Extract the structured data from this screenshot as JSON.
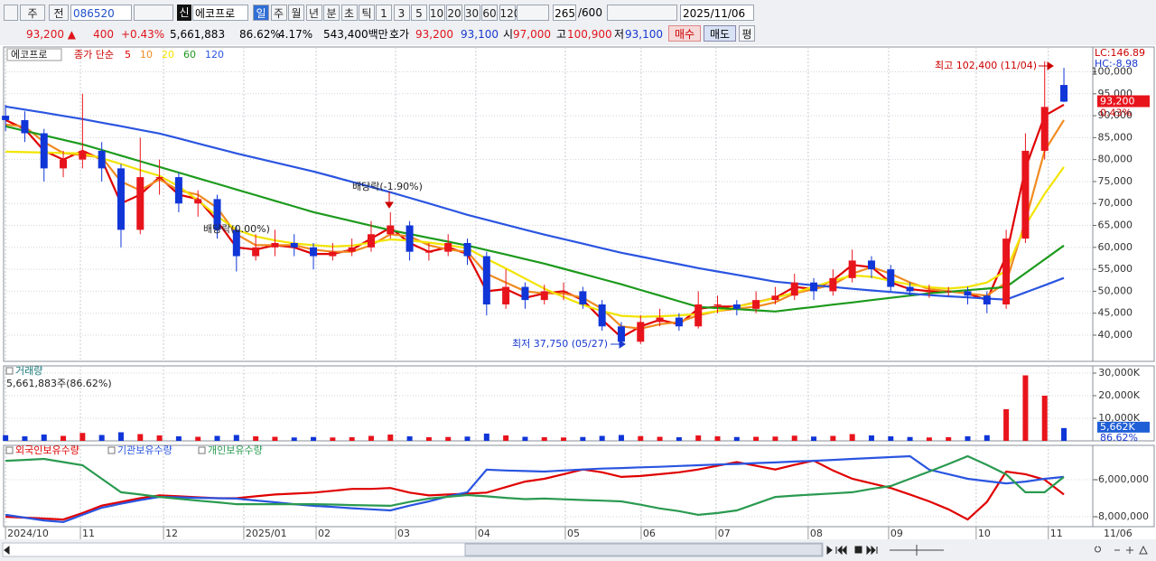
{
  "toolbar": {
    "market": "주",
    "compare": "전",
    "code": "086520",
    "badge": "신",
    "name": "에코프로",
    "periods": [
      "일",
      "주",
      "월",
      "년",
      "분",
      "초",
      "틱"
    ],
    "intervals": [
      "1",
      "3",
      "5",
      "10",
      "20",
      "30",
      "60",
      "120"
    ],
    "count": "265",
    "max": "/600",
    "date": "2025/11/06"
  },
  "quote": {
    "price": "93,200 ▲",
    "change": "400",
    "rate": "+0.43%",
    "volume": "5,661,883",
    "volume_rate": "86.62%",
    "turnover": "4.17%",
    "amount": "543,400백만",
    "bid_label": "호가",
    "ask": "93,200",
    "bid": "93,100",
    "open_label": "시",
    "open": "97,000",
    "high_label": "고",
    "high": "100,900",
    "low_label": "저",
    "low": "93,100",
    "buy": "매수",
    "sell": "매도",
    "avg": "평"
  },
  "chart_data": [
    {
      "type": "candlestick",
      "title": "에코프로",
      "legend_title": "종가 단순",
      "up_color": "#e8141c",
      "down_color": "#1036d8",
      "xlim": [
        -0.1,
        56.5
      ],
      "ylim": [
        34030,
        105660
      ],
      "yticks": [
        {
          "value": 40000,
          "label": "40,000"
        },
        {
          "value": 45000,
          "label": "45,000"
        },
        {
          "value": 50000,
          "label": "50,000"
        },
        {
          "value": 55000,
          "label": "55,000"
        },
        {
          "value": 60000,
          "label": "60,000"
        },
        {
          "value": 65000,
          "label": "65,000"
        },
        {
          "value": 70000,
          "label": "70,000"
        },
        {
          "value": 75000,
          "label": "75,000"
        },
        {
          "value": 80000,
          "label": "80,000"
        },
        {
          "value": 85000,
          "label": "85,000"
        },
        {
          "value": 90000,
          "label": "90,000"
        },
        {
          "value": 95000,
          "label": "95,000"
        },
        {
          "value": 100000,
          "label": "100,000"
        }
      ],
      "open": [
        90000,
        89000,
        86000,
        78000,
        80000,
        82000,
        78000,
        64000,
        76000,
        76000,
        70000,
        71000,
        64000,
        58000,
        60000,
        61000,
        60000,
        58000,
        59000,
        60000,
        63000,
        65000,
        59000,
        59000,
        61000,
        58000,
        47000,
        51000,
        48000,
        50000,
        50000,
        47000,
        42000,
        38500,
        43000,
        44000,
        42000,
        47000,
        47000,
        46000,
        48000,
        49000,
        52000,
        50000,
        53000,
        57000,
        55000,
        51000,
        50000,
        50000,
        50000,
        49000,
        47000,
        62000,
        82000,
        97000
      ],
      "high": [
        92500,
        91000,
        87000,
        82000,
        95000,
        84000,
        79000,
        85000,
        80000,
        77000,
        73000,
        72000,
        65000,
        63000,
        64000,
        63000,
        61000,
        61000,
        62000,
        66000,
        68000,
        66000,
        61000,
        63000,
        62000,
        59000,
        55000,
        52000,
        51500,
        52000,
        51000,
        48000,
        43000,
        44500,
        46000,
        45000,
        50000,
        49000,
        48000,
        50000,
        51000,
        54000,
        53000,
        55000,
        59500,
        58000,
        56000,
        52000,
        51500,
        51000,
        51000,
        50000,
        64000,
        86000,
        102400,
        100900
      ],
      "low": [
        86500,
        84000,
        75000,
        76000,
        78000,
        75000,
        60000,
        63000,
        72000,
        68000,
        67000,
        62000,
        54500,
        57000,
        58000,
        58000,
        55000,
        57000,
        58000,
        59000,
        62000,
        57000,
        57000,
        58000,
        56000,
        44500,
        46000,
        46000,
        47000,
        48000,
        46000,
        41000,
        37750,
        38000,
        42000,
        41000,
        41500,
        45000,
        44500,
        45000,
        47000,
        48000,
        48000,
        49000,
        52000,
        53000,
        50000,
        49000,
        48500,
        49000,
        47000,
        45000,
        46000,
        61000,
        80000,
        93100
      ],
      "close": [
        89000,
        86000,
        78000,
        80000,
        82000,
        78000,
        64000,
        76000,
        76000,
        70000,
        71000,
        64000,
        58000,
        60000,
        61000,
        60000,
        58000,
        59000,
        60000,
        63000,
        65000,
        59000,
        59000,
        61000,
        58000,
        47000,
        51000,
        48000,
        50000,
        50000,
        47000,
        42000,
        38500,
        43000,
        44000,
        42000,
        47000,
        47000,
        46000,
        48000,
        49000,
        52000,
        50000,
        53000,
        57000,
        55000,
        51000,
        50000,
        50000,
        50000,
        49000,
        47000,
        62000,
        82000,
        92000,
        93200
      ],
      "series": [
        {
          "name": "5",
          "color": "#e00000",
          "values": [
            89000,
            87000,
            82000,
            80000,
            82000,
            80000,
            70000,
            72000,
            76000,
            72000,
            71000,
            66000,
            60000,
            59500,
            60500,
            60000,
            58500,
            58500,
            59500,
            62000,
            64500,
            61000,
            59000,
            60000,
            58500,
            50000,
            50500,
            48500,
            49500,
            50000,
            48000,
            43500,
            39500,
            42000,
            43500,
            42500,
            46000,
            46500,
            46500,
            47500,
            48500,
            51000,
            50500,
            52500,
            56000,
            55500,
            52000,
            50500,
            50000,
            50000,
            49500,
            48000,
            58000,
            78000,
            90000,
            92500
          ]
        },
        {
          "name": "10",
          "color": "#f08a20",
          "values": [
            88000,
            87500,
            84000,
            81500,
            81000,
            80500,
            75000,
            73000,
            75500,
            73000,
            72000,
            69000,
            63000,
            60500,
            60500,
            60500,
            59500,
            59000,
            59000,
            60500,
            63000,
            62500,
            60500,
            59500,
            59000,
            54000,
            52000,
            50000,
            49500,
            49500,
            48500,
            46000,
            42000,
            41500,
            42500,
            43000,
            44500,
            45500,
            46000,
            46500,
            47500,
            49500,
            50500,
            51500,
            54000,
            55500,
            54000,
            52000,
            50500,
            50000,
            49500,
            49000,
            52000,
            66000,
            82000,
            89000
          ]
        },
        {
          "name": "20",
          "color": "#f2e400",
          "values": [
            81800,
            81700,
            81600,
            81500,
            81400,
            80300,
            79000,
            77600,
            76300,
            73900,
            70700,
            67100,
            64000,
            62500,
            61600,
            60900,
            60500,
            60200,
            60400,
            61100,
            61800,
            61600,
            61100,
            60500,
            59800,
            57400,
            55200,
            52900,
            50600,
            48700,
            46900,
            45500,
            44400,
            44200,
            44300,
            44500,
            44800,
            45500,
            46500,
            47400,
            48500,
            49700,
            51000,
            52400,
            53600,
            53300,
            52400,
            51500,
            50900,
            50600,
            51000,
            52000,
            54700,
            65000,
            72200,
            78300
          ]
        },
        {
          "name": "60",
          "color": "#1c9a1c",
          "values": [
            87590,
            86560,
            85530,
            84500,
            83470,
            82190,
            80900,
            79620,
            78330,
            77040,
            75760,
            74470,
            73180,
            71900,
            70610,
            69330,
            68040,
            67010,
            65980,
            64950,
            63920,
            63050,
            62170,
            61300,
            60420,
            59390,
            58370,
            57340,
            56310,
            55130,
            53950,
            52760,
            51580,
            50290,
            49010,
            47720,
            46430,
            46170,
            45920,
            45660,
            45400,
            45920,
            46430,
            46950,
            47460,
            47980,
            48490,
            49010,
            49520,
            49880,
            50240,
            50600,
            50960,
            54110,
            57270,
            60420
          ]
        },
        {
          "name": "120",
          "color": "#2a55e0",
          "values": [
            92100,
            91400,
            90700,
            89950,
            89240,
            88420,
            87600,
            86770,
            85950,
            84820,
            83680,
            82550,
            81420,
            80390,
            79360,
            78330,
            77300,
            76120,
            74930,
            73750,
            72570,
            71280,
            70000,
            68710,
            67420,
            66290,
            65160,
            64030,
            62900,
            61870,
            60840,
            59810,
            58780,
            57900,
            57030,
            56150,
            55280,
            54510,
            53740,
            52960,
            52190,
            51780,
            51370,
            50960,
            50550,
            50190,
            49830,
            49470,
            49110,
            48850,
            48600,
            48340,
            48080,
            49730,
            51370,
            53020
          ]
        }
      ],
      "annotations": [
        "배당락(-1.90%)",
        "배당락(0.00%)",
        "최고 102,400 (11/04)",
        "최저 37,750 (05/27)"
      ],
      "lc": "LC:146.89",
      "hc": "HC:-8.98",
      "last_price": "93,200",
      "last_change": "0.43%"
    },
    {
      "type": "bar",
      "title": "거래량",
      "subtitle": "5,661,883주(86.62%)",
      "xlim": [
        -0.1,
        56.5
      ],
      "ylim": [
        0,
        33200
      ],
      "yticks": [
        {
          "value": 10000,
          "label": "10,000K"
        },
        {
          "value": 20000,
          "label": "20,000K"
        },
        {
          "value": 30000,
          "label": "30,000K"
        }
      ],
      "up_color": "#e8141c",
      "down_color": "#1036d8",
      "values": [
        2500,
        2000,
        2800,
        2200,
        3500,
        2600,
        3800,
        3000,
        2400,
        2000,
        1800,
        2200,
        2600,
        2000,
        1800,
        1500,
        1700,
        1500,
        1600,
        2200,
        2800,
        2000,
        1600,
        1700,
        1900,
        3200,
        2400,
        1800,
        1600,
        1500,
        1700,
        2200,
        2600,
        2100,
        1800,
        1600,
        2400,
        2000,
        1700,
        1800,
        1900,
        2300,
        1900,
        2200,
        3000,
        2400,
        2000,
        1700,
        1500,
        1600,
        2000,
        2500,
        14000,
        29000,
        20000,
        5662
      ],
      "last_label": "5,662K",
      "last_rate": "86.62%"
    },
    {
      "type": "line",
      "xlim": [
        -0.1,
        56.5
      ],
      "ylim": [
        -8537000,
        -4146000
      ],
      "yticks": [
        {
          "value": -8000000,
          "label": "-8,000,000"
        },
        {
          "value": -6000000,
          "label": "-6,000,000"
        }
      ],
      "xticks": [
        {
          "value": 0,
          "label": "2024/10"
        },
        {
          "value": 3.89,
          "label": "11"
        },
        {
          "value": 8.21,
          "label": "12"
        },
        {
          "value": 12.38,
          "label": "2025/01"
        },
        {
          "value": 16.14,
          "label": "02"
        },
        {
          "value": 20.27,
          "label": "03"
        },
        {
          "value": 24.44,
          "label": "04"
        },
        {
          "value": 29.09,
          "label": "05"
        },
        {
          "value": 33.03,
          "label": "06"
        },
        {
          "value": 36.92,
          "label": "07"
        },
        {
          "value": 41.71,
          "label": "08"
        },
        {
          "value": 45.89,
          "label": "09"
        },
        {
          "value": 50.44,
          "label": "10"
        },
        {
          "value": 54.19,
          "label": "11"
        }
      ],
      "last_date": "11/06",
      "series": [
        {
          "name": "외국인보유수량",
          "color": "#e00000",
          "values": [
            -8000000,
            -8050000,
            -8100000,
            -8150000,
            -7800000,
            -7400000,
            -7200000,
            -7000000,
            -6850000,
            -6900000,
            -6950000,
            -7000000,
            -7000000,
            -6900000,
            -6800000,
            -6750000,
            -6700000,
            -6600000,
            -6500000,
            -6500000,
            -6450000,
            -6700000,
            -6850000,
            -6800000,
            -6750000,
            -6700000,
            -6400000,
            -6100000,
            -5950000,
            -5700000,
            -5450000,
            -5600000,
            -5850000,
            -5800000,
            -5700000,
            -5600000,
            -5450000,
            -5250000,
            -5050000,
            -5250000,
            -5450000,
            -5200000,
            -4970000,
            -5500000,
            -5950000,
            -6200000,
            -6450000,
            -6800000,
            -7170000,
            -7600000,
            -8150000,
            -7200000,
            -5560000,
            -5700000,
            -6000000,
            -6800000
          ]
        },
        {
          "name": "기관보유수량",
          "color": "#2a55e0",
          "values": [
            -7900000,
            -8050000,
            -8200000,
            -8290000,
            -7900000,
            -7510000,
            -7300000,
            -7100000,
            -6930000,
            -6950000,
            -6980000,
            -7000000,
            -7020000,
            -7120000,
            -7220000,
            -7320000,
            -7410000,
            -7470000,
            -7540000,
            -7600000,
            -7660000,
            -7400000,
            -7170000,
            -6900000,
            -6680000,
            -5460000,
            -5500000,
            -5530000,
            -5560000,
            -5500000,
            -5450000,
            -5400000,
            -5370000,
            -5330000,
            -5300000,
            -5260000,
            -5220000,
            -5180000,
            -5150000,
            -5100000,
            -5070000,
            -5020000,
            -4980000,
            -4930000,
            -4880000,
            -4830000,
            -4780000,
            -4730000,
            -5460000,
            -5700000,
            -5950000,
            -6080000,
            -6200000,
            -6100000,
            -5950000,
            -5850000
          ]
        },
        {
          "name": "개인보유수량",
          "color": "#2a9a50",
          "values": [
            -4980000,
            -4930000,
            -4880000,
            -5050000,
            -5220000,
            -5950000,
            -6680000,
            -6800000,
            -6930000,
            -7030000,
            -7130000,
            -7220000,
            -7320000,
            -7320000,
            -7320000,
            -7320000,
            -7320000,
            -7340000,
            -7370000,
            -7390000,
            -7410000,
            -7200000,
            -7020000,
            -6920000,
            -6830000,
            -6900000,
            -6980000,
            -7050000,
            -7020000,
            -7060000,
            -7100000,
            -7130000,
            -7170000,
            -7350000,
            -7550000,
            -7700000,
            -7900000,
            -7800000,
            -7660000,
            -7300000,
            -6930000,
            -6860000,
            -6800000,
            -6740000,
            -6680000,
            -6500000,
            -6340000,
            -5950000,
            -5560000,
            -5150000,
            -4730000,
            -5200000,
            -5710000,
            -6680000,
            -6680000,
            -5850000
          ]
        }
      ]
    }
  ]
}
